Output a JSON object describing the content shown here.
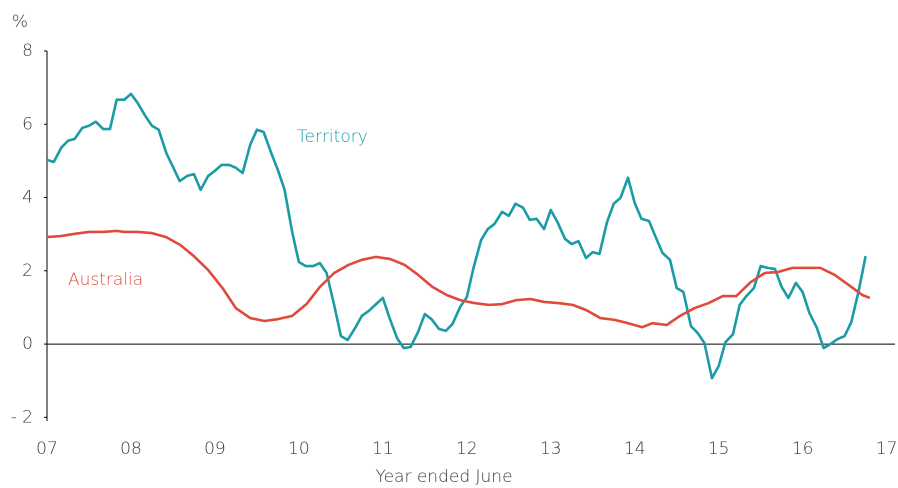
{
  "chart_data": {
    "type": "line",
    "y_unit": "%",
    "x_label": "Year ended June",
    "xlim": [
      2007,
      2017.1
    ],
    "ylim": [
      -2.1,
      8
    ],
    "xticks": [
      {
        "value": 2007,
        "label": "07"
      },
      {
        "value": 2008,
        "label": "08"
      },
      {
        "value": 2009,
        "label": "09"
      },
      {
        "value": 2010,
        "label": "10"
      },
      {
        "value": 2011,
        "label": "11"
      },
      {
        "value": 2012,
        "label": "12"
      },
      {
        "value": 2013,
        "label": "13"
      },
      {
        "value": 2014,
        "label": "14"
      },
      {
        "value": 2015,
        "label": "15"
      },
      {
        "value": 2016,
        "label": "16"
      },
      {
        "value": 2017,
        "label": "17"
      }
    ],
    "yticks": [
      {
        "value": -2,
        "label": "- 2"
      },
      0,
      2,
      4,
      6,
      8
    ],
    "series": [
      {
        "name": "Territory",
        "color": "#1a9ba5",
        "x": [
          2007.0,
          2007.08,
          2007.17,
          2007.25,
          2007.33,
          2007.42,
          2007.5,
          2007.58,
          2007.67,
          2007.75,
          2007.83,
          2007.92,
          2008.0,
          2008.08,
          2008.17,
          2008.25,
          2008.33,
          2008.42,
          2008.5,
          2008.58,
          2008.67,
          2008.75,
          2008.83,
          2008.92,
          2009.0,
          2009.08,
          2009.17,
          2009.25,
          2009.33,
          2009.42,
          2009.5,
          2009.58,
          2009.67,
          2009.75,
          2009.83,
          2009.92,
          2010.0,
          2010.08,
          2010.17,
          2010.25,
          2010.33,
          2010.42,
          2010.5,
          2010.58,
          2010.67,
          2010.75,
          2010.83,
          2010.92,
          2011.0,
          2011.08,
          2011.17,
          2011.25,
          2011.33,
          2011.42,
          2011.5,
          2011.58,
          2011.67,
          2011.75,
          2011.83,
          2011.92,
          2012.0,
          2012.08,
          2012.17,
          2012.25,
          2012.33,
          2012.42,
          2012.5,
          2012.58,
          2012.67,
          2012.75,
          2012.83,
          2012.92,
          2013.0,
          2013.08,
          2013.17,
          2013.25,
          2013.33,
          2013.42,
          2013.5,
          2013.58,
          2013.67,
          2013.75,
          2013.83,
          2013.92,
          2014.0,
          2014.08,
          2014.17,
          2014.25,
          2014.33,
          2014.42,
          2014.5,
          2014.58,
          2014.67,
          2014.75,
          2014.83,
          2014.92,
          2015.0,
          2015.08,
          2015.17,
          2015.25,
          2015.33,
          2015.42,
          2015.5,
          2015.58,
          2015.67,
          2015.75,
          2015.83,
          2015.92,
          2016.0,
          2016.08,
          2016.17,
          2016.25,
          2016.33,
          2016.42,
          2016.5,
          2016.58,
          2016.67,
          2016.75
        ],
        "values": [
          5.03,
          4.97,
          5.36,
          5.55,
          5.6,
          5.9,
          5.96,
          6.07,
          5.87,
          5.87,
          6.67,
          6.67,
          6.83,
          6.58,
          6.23,
          5.96,
          5.85,
          5.22,
          4.84,
          4.45,
          4.59,
          4.64,
          4.21,
          4.59,
          4.73,
          4.89,
          4.89,
          4.81,
          4.67,
          5.44,
          5.85,
          5.79,
          5.22,
          4.75,
          4.21,
          3.06,
          2.24,
          2.13,
          2.13,
          2.21,
          1.94,
          1.07,
          0.22,
          0.11,
          0.44,
          0.77,
          0.9,
          1.09,
          1.26,
          0.71,
          0.16,
          -0.11,
          -0.08,
          0.33,
          0.82,
          0.68,
          0.41,
          0.36,
          0.55,
          1.01,
          1.28,
          2.08,
          2.84,
          3.14,
          3.28,
          3.61,
          3.5,
          3.83,
          3.72,
          3.39,
          3.42,
          3.14,
          3.66,
          3.33,
          2.87,
          2.73,
          2.81,
          2.35,
          2.51,
          2.46,
          3.33,
          3.83,
          3.99,
          4.54,
          3.85,
          3.42,
          3.36,
          2.92,
          2.49,
          2.3,
          1.53,
          1.42,
          0.49,
          0.3,
          0.03,
          -0.93,
          -0.6,
          0.05,
          0.27,
          1.07,
          1.31,
          1.53,
          2.13,
          2.08,
          2.05,
          1.56,
          1.26,
          1.67,
          1.42,
          0.85,
          0.44,
          -0.11,
          0,
          0.14,
          0.22,
          0.6,
          1.48,
          2.4
        ]
      },
      {
        "name": "Australia",
        "color": "#e04a3c",
        "x": [
          2007.0,
          2007.17,
          2007.33,
          2007.5,
          2007.67,
          2007.83,
          2007.92,
          2008.08,
          2008.25,
          2008.42,
          2008.59,
          2008.75,
          2008.92,
          2009.09,
          2009.25,
          2009.42,
          2009.59,
          2009.75,
          2009.92,
          2010.09,
          2010.25,
          2010.42,
          2010.59,
          2010.75,
          2010.92,
          2011.09,
          2011.26,
          2011.42,
          2011.59,
          2011.76,
          2011.92,
          2012.09,
          2012.26,
          2012.42,
          2012.59,
          2012.76,
          2012.92,
          2013.09,
          2013.26,
          2013.42,
          2013.59,
          2013.76,
          2013.92,
          2014.09,
          2014.21,
          2014.38,
          2014.54,
          2014.71,
          2014.88,
          2015.05,
          2015.21,
          2015.38,
          2015.55,
          2015.71,
          2015.88,
          2016.05,
          2016.21,
          2016.38,
          2016.55,
          2016.71,
          2016.8
        ],
        "values": [
          2.92,
          2.95,
          3.01,
          3.06,
          3.06,
          3.09,
          3.06,
          3.06,
          3.03,
          2.92,
          2.7,
          2.4,
          2.02,
          1.53,
          0.98,
          0.71,
          0.63,
          0.68,
          0.77,
          1.09,
          1.56,
          1.94,
          2.16,
          2.3,
          2.38,
          2.32,
          2.16,
          1.89,
          1.56,
          1.34,
          1.2,
          1.12,
          1.07,
          1.09,
          1.2,
          1.23,
          1.15,
          1.12,
          1.07,
          0.93,
          0.71,
          0.66,
          0.57,
          0.46,
          0.57,
          0.52,
          0.77,
          0.98,
          1.12,
          1.31,
          1.31,
          1.69,
          1.94,
          1.97,
          2.08,
          2.08,
          2.08,
          1.89,
          1.61,
          1.34,
          1.26
        ]
      }
    ]
  }
}
